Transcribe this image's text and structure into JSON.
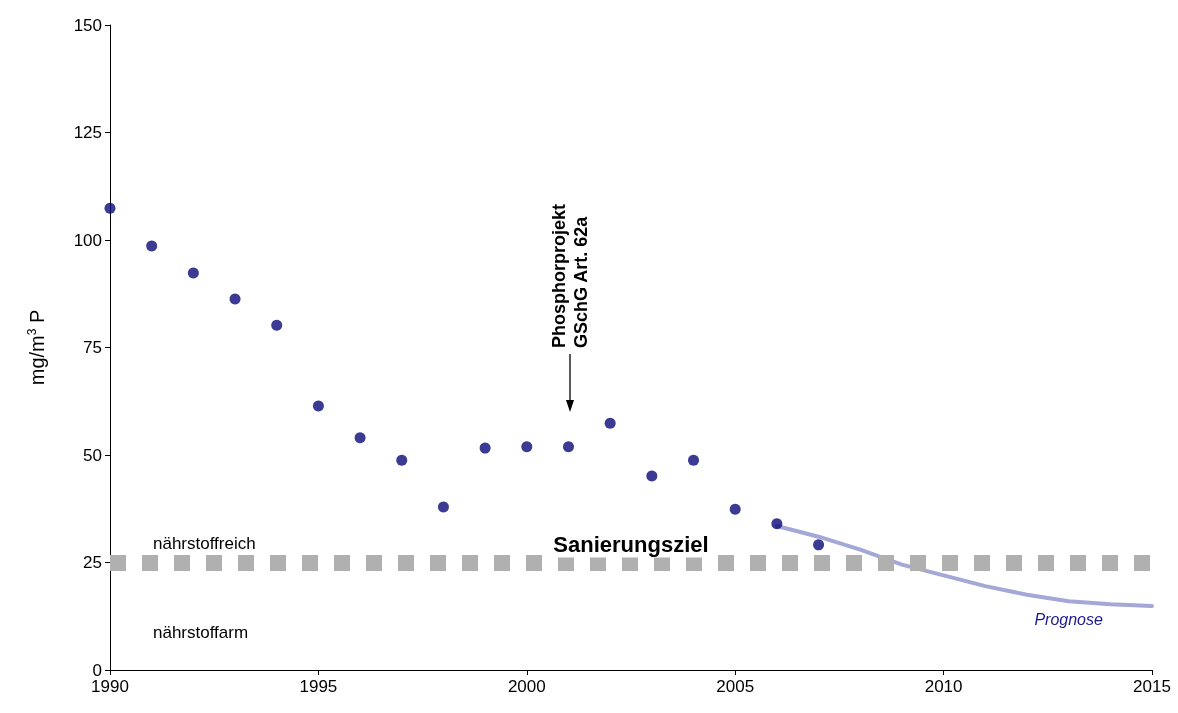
{
  "chart_data": {
    "type": "scatter",
    "ylabel": "mg/m$^{3}$ P",
    "xlim": [
      1990,
      2015
    ],
    "xticks": [
      1990,
      1995,
      2000,
      2005,
      2010,
      2015
    ],
    "ylim": [
      0,
      150
    ],
    "yticks": [
      0,
      25,
      50,
      75,
      100,
      125,
      150
    ],
    "grid": false,
    "legend": false,
    "series": [
      {
        "marker": "circle",
        "color": "#0a0a78",
        "x": [
          1990,
          1991,
          1992,
          1993,
          1994,
          1995,
          1996,
          1997,
          1998,
          1999,
          2000,
          2001,
          2002,
          2003,
          2004,
          2005,
          2006,
          2007
        ],
        "values": [
          107.4,
          98.6,
          92.3,
          86.3,
          80.2,
          61.4,
          54,
          48.8,
          37.9,
          51.6,
          51.9,
          51.9,
          57.4,
          45.1,
          48.8,
          37.4,
          34,
          29.1
        ]
      },
      {
        "type": "line",
        "name": "Prognose",
        "marker": "none",
        "color": "#a3a8d6",
        "line_style": "solid",
        "x": [
          2006,
          2007,
          2008,
          2009,
          2010,
          2011,
          2012,
          2013,
          2014,
          2015
        ],
        "values": [
          33.5,
          31,
          28,
          24.5,
          22,
          19.5,
          17.5,
          16,
          15.3,
          14.9
        ]
      }
    ],
    "ref_lines": [
      {
        "axis": "y",
        "value": 25,
        "label": "Sanierungsziel",
        "color": "#b0b0b0"
      }
    ],
    "annotations": [
      "nährstoffreich",
      "nährstoffarm",
      "Phosphorprojekt\nGSchG Art. 62a"
    ]
  }
}
